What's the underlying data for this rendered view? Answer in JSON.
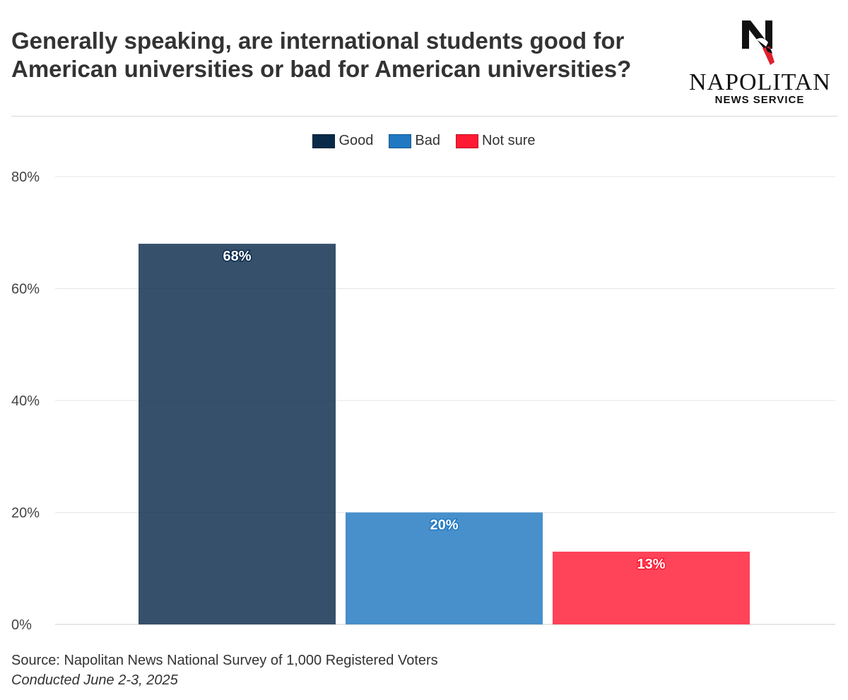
{
  "header": {
    "title": "Generally speaking, are international students good for American universities or bad for American universities?"
  },
  "logo": {
    "wordmark": "NAPOLITAN",
    "subtitle": "NEWS SERVICE"
  },
  "legend": {
    "items": [
      {
        "label": "Good",
        "color": "#0a2a4a"
      },
      {
        "label": "Bad",
        "color": "#1f78c1"
      },
      {
        "label": "Not sure",
        "color": "#ff1a33"
      }
    ]
  },
  "footer": {
    "source": "Source: Napolitan News National Survey of 1,000 Registered Voters",
    "conducted": "Conducted June 2-3, 2025"
  },
  "chart_data": {
    "type": "bar",
    "title": "Generally speaking, are international students good for American universities or bad for American universities?",
    "xlabel": "",
    "ylabel": "",
    "ylim": [
      0,
      80
    ],
    "yticks": [
      "0%",
      "20%",
      "40%",
      "60%",
      "80%"
    ],
    "grid": true,
    "legend_position": "top-center",
    "series": [
      {
        "name": "Good",
        "values": [
          68
        ],
        "label": "68%",
        "color": "#0a2a4a"
      },
      {
        "name": "Bad",
        "values": [
          20
        ],
        "label": "20%",
        "color": "#1f78c1"
      },
      {
        "name": "Not sure",
        "values": [
          13
        ],
        "label": "13%",
        "color": "#ff1a33"
      }
    ]
  }
}
